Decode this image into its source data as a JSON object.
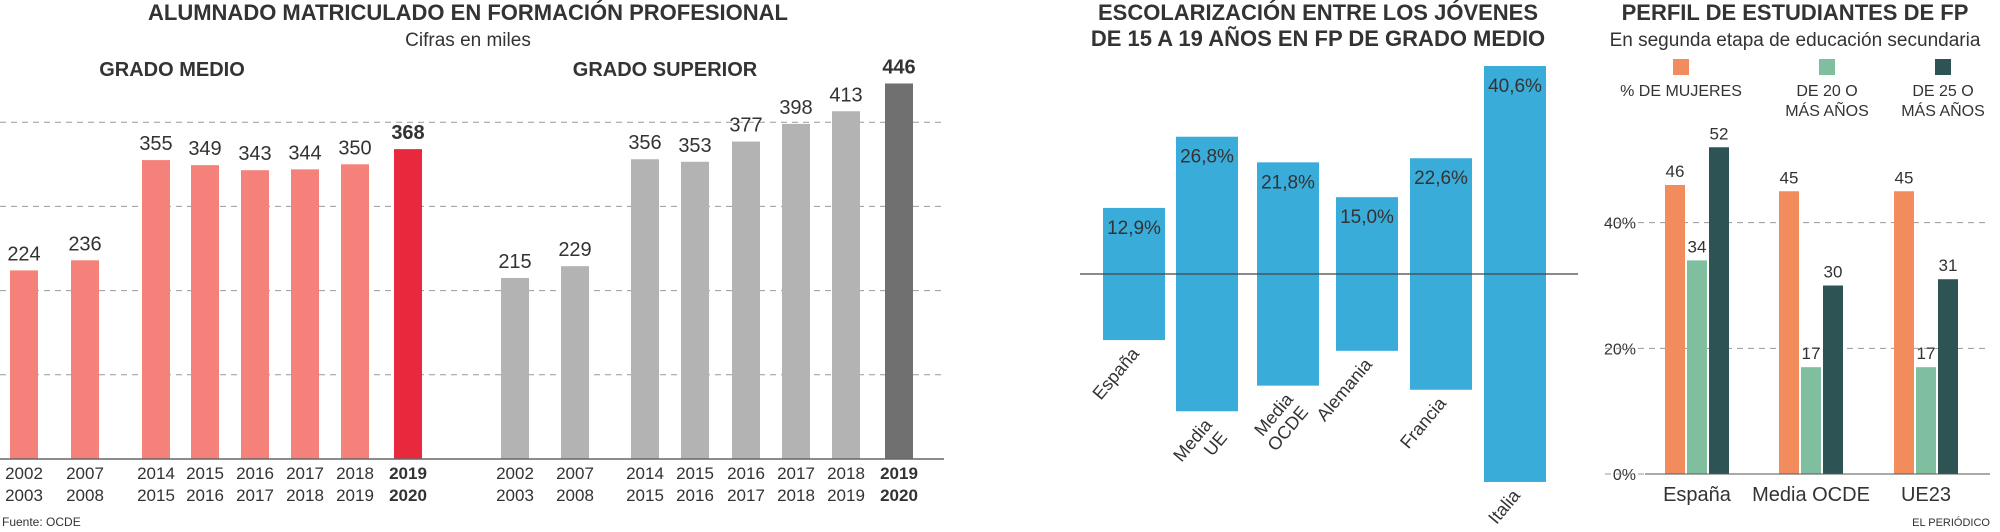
{
  "source": "Fuente: OCDE",
  "credit": "EL PERIÓDICO",
  "chart_data": [
    {
      "type": "bar",
      "title": "ALUMNADO MATRICULADO EN FORMACIÓN PROFESIONAL",
      "subtitle": "Cifras en miles",
      "ylim": [
        0,
        500
      ],
      "yticks": [
        100,
        200,
        300,
        400
      ],
      "grid": true,
      "panels": [
        {
          "name": "GRADO MEDIO",
          "categories": [
            [
              "2002",
              "2003"
            ],
            [
              "2007",
              "2008"
            ],
            [
              "2014",
              "2015"
            ],
            [
              "2015",
              "2016"
            ],
            [
              "2016",
              "2017"
            ],
            [
              "2017",
              "2018"
            ],
            [
              "2018",
              "2019"
            ],
            [
              "2019",
              "2020"
            ]
          ],
          "values": [
            224,
            236,
            355,
            349,
            343,
            344,
            350,
            368
          ],
          "colors": [
            "#f4827a",
            "#f4827a",
            "#f4827a",
            "#f4827a",
            "#f4827a",
            "#f4827a",
            "#f4827a",
            "#e8283c"
          ]
        },
        {
          "name": "GRADO SUPERIOR",
          "categories": [
            [
              "2002",
              "2003"
            ],
            [
              "2007",
              "2008"
            ],
            [
              "2014",
              "2015"
            ],
            [
              "2015",
              "2016"
            ],
            [
              "2016",
              "2017"
            ],
            [
              "2017",
              "2018"
            ],
            [
              "2018",
              "2019"
            ],
            [
              "2019",
              "2020"
            ]
          ],
          "values": [
            215,
            229,
            356,
            353,
            377,
            398,
            413,
            446
          ],
          "colors": [
            "#b3b3b3",
            "#b3b3b3",
            "#b3b3b3",
            "#b3b3b3",
            "#b3b3b3",
            "#b3b3b3",
            "#b3b3b3",
            "#707070"
          ]
        }
      ]
    },
    {
      "type": "floating_bar",
      "title": [
        "ESCOLARIZACIÓN ENTRE LOS JÓVENES",
        "DE 15 A 19 AÑOS EN FP DE GRADO MEDIO"
      ],
      "categories": [
        [
          "España"
        ],
        [
          "Media",
          "UE"
        ],
        [
          "Media",
          "OCDE"
        ],
        [
          "Alemania"
        ],
        [
          "Francia"
        ],
        [
          "Italia"
        ]
      ],
      "values": [
        12.9,
        26.8,
        21.8,
        15.0,
        22.6,
        40.6
      ],
      "value_labels": [
        "12,9%",
        "26,8%",
        "21,8%",
        "15,0%",
        "22,6%",
        "40,6%"
      ],
      "color": "#3aacd9",
      "ylim": [
        0,
        45
      ]
    },
    {
      "type": "grouped_bar",
      "title": "PERFIL DE ESTUDIANTES DE FP",
      "subtitle": "En segunda etapa de educación secundaria",
      "categories": [
        "España",
        "Media OCDE",
        "UE23"
      ],
      "series": [
        {
          "name": "% DE MUJERES",
          "color": "#f28c5c",
          "values": [
            46,
            45,
            45
          ]
        },
        {
          "name": "DE 20 O MÁS AÑOS",
          "color": "#7fbf9f",
          "values": [
            34,
            17,
            17
          ]
        },
        {
          "name": "DE 25 O MÁS AÑOS",
          "color": "#2e5355",
          "values": [
            52,
            30,
            31
          ]
        }
      ],
      "ylim": [
        0,
        60
      ],
      "yticks": [
        {
          "value": 0,
          "label": "0%"
        },
        {
          "value": 20,
          "label": "20%"
        },
        {
          "value": 40,
          "label": "40%"
        }
      ],
      "grid": true
    }
  ]
}
